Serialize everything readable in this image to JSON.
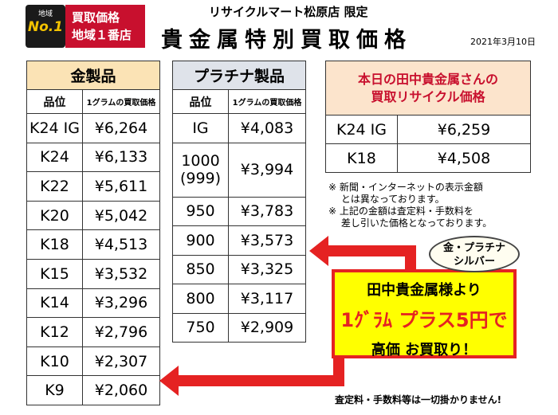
{
  "badge": {
    "small": "地域",
    "number": "No.1",
    "line1": "買取価格",
    "line2": "地域１番店"
  },
  "header": {
    "store": "リサイクルマート松原店 限定",
    "title": "貴金属特別買取価格",
    "date": "2021年3月10日"
  },
  "gold": {
    "title": "金製品",
    "col_grade": "品位",
    "col_price": "1グラムの買取価格",
    "rows": [
      {
        "grade": "K24 IG",
        "price": "¥6,264"
      },
      {
        "grade": "K24",
        "price": "¥6,133"
      },
      {
        "grade": "K22",
        "price": "¥5,611"
      },
      {
        "grade": "K20",
        "price": "¥5,042"
      },
      {
        "grade": "K18",
        "price": "¥4,513"
      },
      {
        "grade": "K15",
        "price": "¥3,532"
      },
      {
        "grade": "K14",
        "price": "¥3,296"
      },
      {
        "grade": "K12",
        "price": "¥2,796"
      },
      {
        "grade": "K10",
        "price": "¥2,307"
      },
      {
        "grade": "K9",
        "price": "¥2,060"
      }
    ]
  },
  "platinum": {
    "title": "プラチナ製品",
    "col_grade": "品位",
    "col_price": "1グラムの買取価格",
    "rows": [
      {
        "grade": "IG",
        "price": "¥4,083"
      },
      {
        "grade": "1000 (999)",
        "price": "¥3,994"
      },
      {
        "grade": "950",
        "price": "¥3,783"
      },
      {
        "grade": "900",
        "price": "¥3,573"
      },
      {
        "grade": "850",
        "price": "¥3,325"
      },
      {
        "grade": "800",
        "price": "¥3,117"
      },
      {
        "grade": "750",
        "price": "¥2,909"
      }
    ]
  },
  "today": {
    "title_line1": "本日の田中貴金属さんの",
    "title_line2": "買取リサイクル価格",
    "rows": [
      {
        "grade": "K24 IG",
        "price": "¥6,259"
      },
      {
        "grade": "K18",
        "price": "¥4,508"
      }
    ]
  },
  "notes": [
    "※ 新聞・インターネットの表示金額",
    "　 とは異なっております。",
    "※ 上記の金額は査定料・手数料を",
    "　 差し引いた価格となっております。"
  ],
  "bubble": {
    "line1": "金・プラチナ",
    "line2": "シルバー"
  },
  "callout": {
    "line1": "田中貴金属様より",
    "line2": "1ｸﾞﾗﾑ プラス5円で",
    "line3": "高価 お買取り！"
  },
  "footer": "査定料・手数料等は一切掛かりません!",
  "colors": {
    "accent_red": "#e52222",
    "gold_header": "#fbe3b5",
    "platinum_header": "#dfe3ea",
    "callout_bg": "#ffff00"
  }
}
